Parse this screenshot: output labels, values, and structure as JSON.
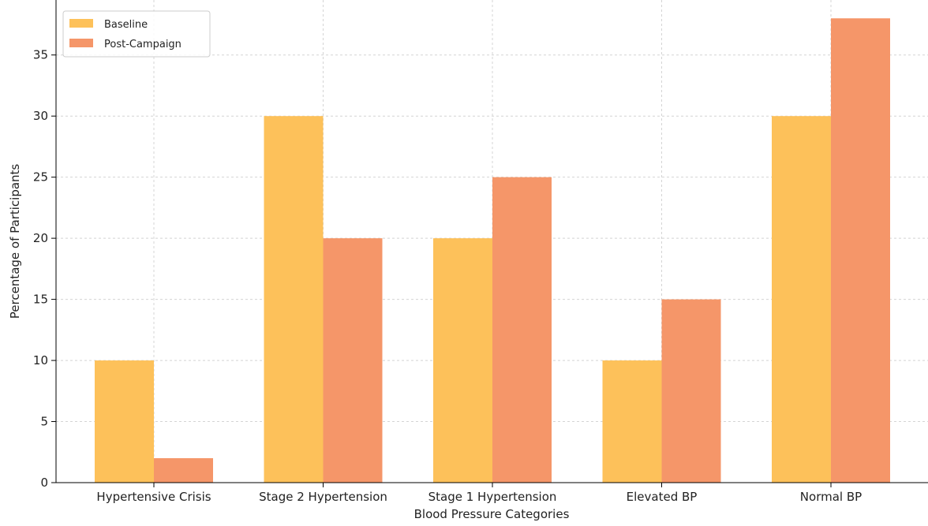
{
  "chart_data": {
    "type": "bar",
    "title": "",
    "xlabel": "Blood Pressure Categories",
    "ylabel": "Percentage of Participants",
    "categories": [
      "Hypertensive Crisis",
      "Stage 2 Hypertension",
      "Stage 1 Hypertension",
      "Elevated BP",
      "Normal BP"
    ],
    "series": [
      {
        "name": "Baseline",
        "values": [
          10,
          30,
          20,
          10,
          30
        ],
        "color": "#fdc15a"
      },
      {
        "name": "Post-Campaign",
        "values": [
          2,
          20,
          25,
          15,
          38
        ],
        "color": "#f59669"
      }
    ],
    "ylim": [
      0,
      39.5
    ],
    "yticks": [
      0,
      5,
      10,
      15,
      20,
      25,
      30,
      35
    ],
    "grid": true,
    "legend_position": "top-left"
  }
}
